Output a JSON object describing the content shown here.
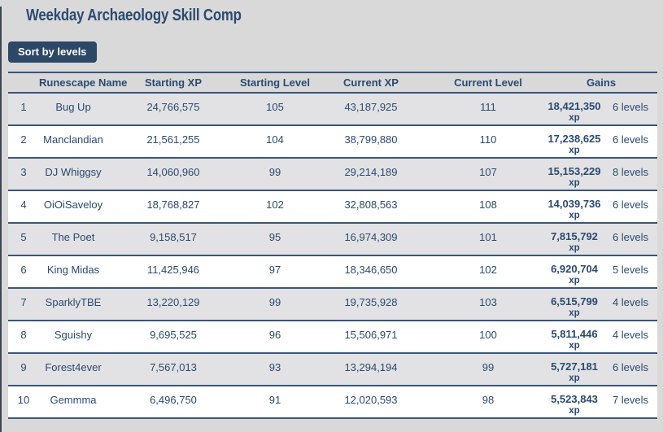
{
  "page": {
    "title": "Weekday Archaeology Skill Comp"
  },
  "toolbar": {
    "sort_button_label": "Sort by levels"
  },
  "table": {
    "headers": {
      "rank": "",
      "name": "Runescape Name",
      "starting_xp": "Starting XP",
      "starting_level": "Starting Level",
      "current_xp": "Current XP",
      "current_level": "Current Level",
      "gains": "Gains"
    },
    "xp_suffix": "xp",
    "rows": [
      {
        "rank": "1",
        "name": "Bug Up",
        "starting_xp": "24,766,575",
        "starting_level": "105",
        "current_xp": "43,187,925",
        "current_level": "111",
        "gained_xp": "18,421,350",
        "gained_levels": "6 levels"
      },
      {
        "rank": "2",
        "name": "Manclandian",
        "starting_xp": "21,561,255",
        "starting_level": "104",
        "current_xp": "38,799,880",
        "current_level": "110",
        "gained_xp": "17,238,625",
        "gained_levels": "6 levels"
      },
      {
        "rank": "3",
        "name": "DJ Whiggsy",
        "starting_xp": "14,060,960",
        "starting_level": "99",
        "current_xp": "29,214,189",
        "current_level": "107",
        "gained_xp": "15,153,229",
        "gained_levels": "8 levels"
      },
      {
        "rank": "4",
        "name": "OiOiSaveloy",
        "starting_xp": "18,768,827",
        "starting_level": "102",
        "current_xp": "32,808,563",
        "current_level": "108",
        "gained_xp": "14,039,736",
        "gained_levels": "6 levels"
      },
      {
        "rank": "5",
        "name": "The Poet",
        "starting_xp": "9,158,517",
        "starting_level": "95",
        "current_xp": "16,974,309",
        "current_level": "101",
        "gained_xp": "7,815,792",
        "gained_levels": "6 levels"
      },
      {
        "rank": "6",
        "name": "King Midas",
        "starting_xp": "11,425,946",
        "starting_level": "97",
        "current_xp": "18,346,650",
        "current_level": "102",
        "gained_xp": "6,920,704",
        "gained_levels": "5 levels"
      },
      {
        "rank": "7",
        "name": "SparklyTBE",
        "starting_xp": "13,220,129",
        "starting_level": "99",
        "current_xp": "19,735,928",
        "current_level": "103",
        "gained_xp": "6,515,799",
        "gained_levels": "4 levels"
      },
      {
        "rank": "8",
        "name": "Sguishy",
        "starting_xp": "9,695,525",
        "starting_level": "96",
        "current_xp": "15,506,971",
        "current_level": "100",
        "gained_xp": "5,811,446",
        "gained_levels": "4 levels"
      },
      {
        "rank": "9",
        "name": "Forest4ever",
        "starting_xp": "7,567,013",
        "starting_level": "93",
        "current_xp": "13,294,194",
        "current_level": "99",
        "gained_xp": "5,727,181",
        "gained_levels": "6 levels"
      },
      {
        "rank": "10",
        "name": "Gemmma",
        "starting_xp": "6,496,750",
        "starting_level": "91",
        "current_xp": "12,020,593",
        "current_level": "98",
        "gained_xp": "5,523,843",
        "gained_levels": "7 levels"
      }
    ]
  },
  "colors": {
    "bg": "#d9d9d9",
    "row-alt": "#e2e2e4",
    "row-white": "#ffffff",
    "navy": "#2b4a71",
    "border-navy": "#3a5679",
    "btn-bg": "#2d4767",
    "btn-text": "#ffffff",
    "edge": "#3c4654"
  }
}
